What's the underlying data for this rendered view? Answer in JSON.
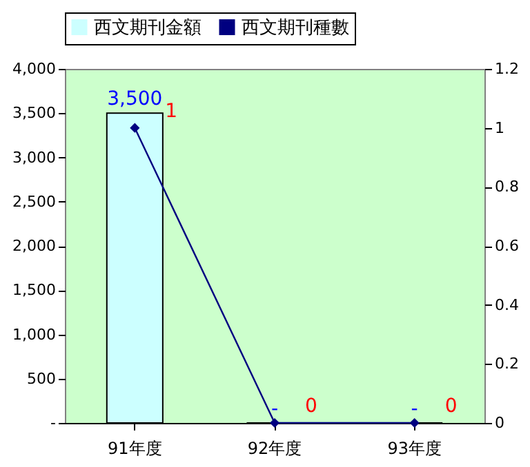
{
  "chart_data": {
    "type": "bar",
    "categories": [
      "91年度",
      "92年度",
      "93年度"
    ],
    "series": [
      {
        "name": "西文期刊金額",
        "color": "#ccffff",
        "values": [
          3500,
          0,
          0
        ],
        "value_labels": [
          "3,500",
          "-",
          "-"
        ]
      },
      {
        "name": "西文期刊種數",
        "type": "line",
        "axis": "y2",
        "color": "#000080",
        "values": [
          1,
          0,
          0
        ],
        "value_labels": [
          "1",
          "0",
          "0"
        ]
      }
    ],
    "ylim": [
      0,
      4000
    ],
    "yticks": [
      {
        "value": 0,
        "label": "-"
      },
      {
        "value": 500,
        "label": "500"
      },
      {
        "value": 1000,
        "label": "1,000"
      },
      {
        "value": 1500,
        "label": "1,500"
      },
      {
        "value": 2000,
        "label": "2,000"
      },
      {
        "value": 2500,
        "label": "2,500"
      },
      {
        "value": 3000,
        "label": "3,000"
      },
      {
        "value": 3500,
        "label": "3,500"
      },
      {
        "value": 4000,
        "label": "4,000"
      }
    ],
    "y2lim": [
      0,
      1.2
    ],
    "y2ticks": [
      0,
      0.2,
      0.4,
      0.6,
      0.8,
      1,
      1.2
    ],
    "legend": "top",
    "grid": false,
    "marker": "diamond"
  }
}
